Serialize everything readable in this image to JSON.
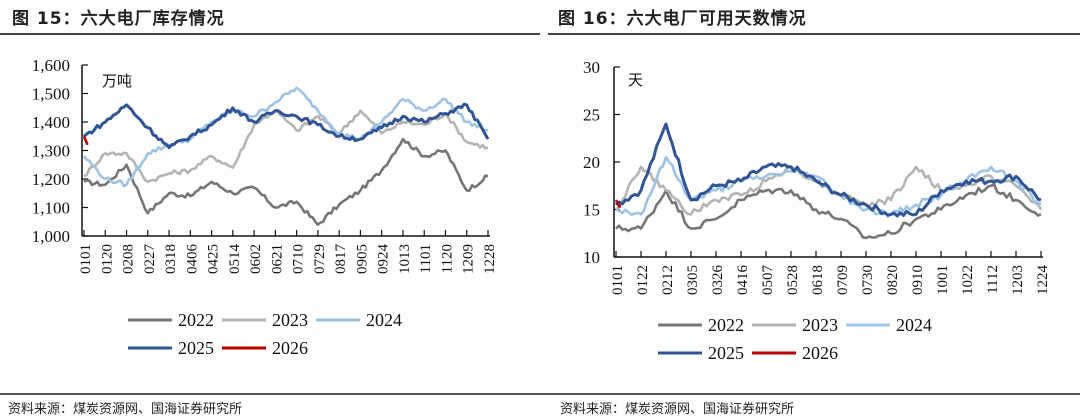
{
  "figures": [
    {
      "title": "图 15：六大电厂库存情况",
      "source": "资料来源：煤炭资源网、国海证券研究所"
    },
    {
      "title": "图 16：六大电厂可用天数情况",
      "source": "资料来源：煤炭资源网、国海证券研究所"
    }
  ],
  "colors": {
    "2022": "#767676",
    "2023": "#b4b4b4",
    "2024": "#9dc3e6",
    "2025": "#2f5597",
    "2026": "#c00000"
  },
  "chart_data": [
    {
      "type": "line",
      "title": "图 15：六大电厂库存情况",
      "unit_label": "万吨",
      "xlabel": "",
      "ylabel": "万吨",
      "ylim": [
        1000,
        1600
      ],
      "yticks": [
        "1,000",
        "1,100",
        "1,200",
        "1,300",
        "1,400",
        "1,500",
        "1,600"
      ],
      "ytick_values": [
        1000,
        1100,
        1200,
        1300,
        1400,
        1500,
        1600
      ],
      "categories": [
        "0101",
        "0120",
        "0208",
        "0227",
        "0318",
        "0406",
        "0425",
        "0514",
        "0602",
        "0621",
        "0710",
        "0729",
        "0817",
        "0905",
        "0924",
        "1013",
        "1101",
        "1120",
        "1209",
        "1228"
      ],
      "grid": false,
      "legend": "bottom",
      "legend_entries": [
        "2022",
        "2023",
        "2024",
        "2025",
        "2026"
      ],
      "series": [
        {
          "name": "2022",
          "values": [
            1190,
            1180,
            1250,
            1080,
            1150,
            1140,
            1190,
            1150,
            1170,
            1100,
            1120,
            1040,
            1110,
            1160,
            1230,
            1340,
            1280,
            1300,
            1160,
            1210
          ]
        },
        {
          "name": "2023",
          "values": [
            1210,
            1290,
            1290,
            1190,
            1220,
            1230,
            1280,
            1240,
            1390,
            1440,
            1370,
            1420,
            1360,
            1440,
            1360,
            1400,
            1390,
            1430,
            1330,
            1310
          ]
        },
        {
          "name": "2024",
          "values": [
            1280,
            1200,
            1180,
            1290,
            1320,
            1340,
            1400,
            1440,
            1420,
            1470,
            1520,
            1440,
            1360,
            1340,
            1400,
            1480,
            1440,
            1480,
            1400,
            1370
          ]
        },
        {
          "name": "2025",
          "values": [
            1350,
            1400,
            1460,
            1380,
            1310,
            1350,
            1390,
            1450,
            1400,
            1440,
            1420,
            1390,
            1350,
            1340,
            1380,
            1420,
            1400,
            1430,
            1460,
            1340
          ]
        },
        {
          "name": "2026",
          "values": [
            1350,
            1320
          ]
        }
      ]
    },
    {
      "type": "line",
      "title": "图 16：六大电厂可用天数情况",
      "unit_label": "天",
      "xlabel": "",
      "ylabel": "天",
      "ylim": [
        10,
        30
      ],
      "yticks": [
        "10",
        "15",
        "20",
        "25",
        "30"
      ],
      "ytick_values": [
        10,
        15,
        20,
        25,
        30
      ],
      "categories": [
        "0101",
        "0122",
        "0212",
        "0305",
        "0326",
        "0416",
        "0507",
        "0528",
        "0618",
        "0709",
        "0730",
        "0820",
        "0910",
        "1001",
        "1022",
        "1112",
        "1203",
        "1224"
      ],
      "grid": false,
      "legend": "bottom",
      "legend_entries": [
        "2022",
        "2023",
        "2024",
        "2025",
        "2026"
      ],
      "series": [
        {
          "name": "2022",
          "values": [
            13,
            13,
            17,
            13,
            14,
            16,
            17,
            17,
            15,
            14,
            12,
            12.5,
            14,
            15,
            16.5,
            17.5,
            16,
            14.5
          ]
        },
        {
          "name": "2023",
          "values": [
            15,
            19.5,
            17,
            14.5,
            16,
            16.5,
            18,
            19.5,
            18,
            16.5,
            15.5,
            16,
            19.5,
            17,
            17.5,
            18.5,
            17.5,
            15
          ]
        },
        {
          "name": "2024",
          "values": [
            15,
            14.5,
            20.5,
            16,
            17,
            18,
            18.5,
            19,
            18.5,
            16.5,
            15,
            14.5,
            15.5,
            16.5,
            18,
            19.5,
            18,
            15.5
          ]
        },
        {
          "name": "2025",
          "values": [
            15.5,
            17,
            24,
            16,
            17.5,
            18,
            19.5,
            19.5,
            18,
            16.5,
            15.5,
            14.5,
            14.5,
            17,
            18,
            18,
            18.5,
            16
          ]
        },
        {
          "name": "2026",
          "values": [
            16,
            15.2
          ]
        }
      ]
    }
  ]
}
